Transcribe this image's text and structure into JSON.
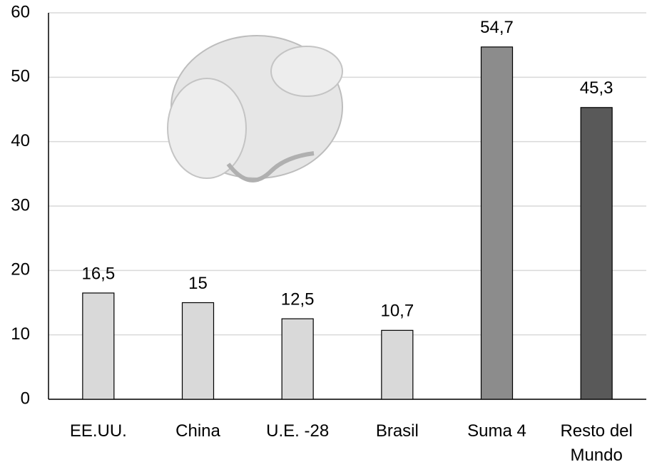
{
  "chart_data": {
    "type": "bar",
    "categories": [
      "EE.UU.",
      "China",
      "U.E. -28",
      "Brasil",
      "Suma 4",
      "Resto del Mundo"
    ],
    "values": [
      16.5,
      15,
      12.5,
      10.7,
      54.7,
      45.3
    ],
    "value_labels": [
      "16,5",
      "15",
      "12,5",
      "10,7",
      "54,7",
      "45,3"
    ],
    "colors": [
      "#d9d9d9",
      "#d9d9d9",
      "#d9d9d9",
      "#d9d9d9",
      "#8c8c8c",
      "#595959"
    ],
    "ylim": [
      0,
      60
    ],
    "yticks": [
      0,
      10,
      20,
      30,
      40,
      50,
      60
    ],
    "grid": true
  }
}
